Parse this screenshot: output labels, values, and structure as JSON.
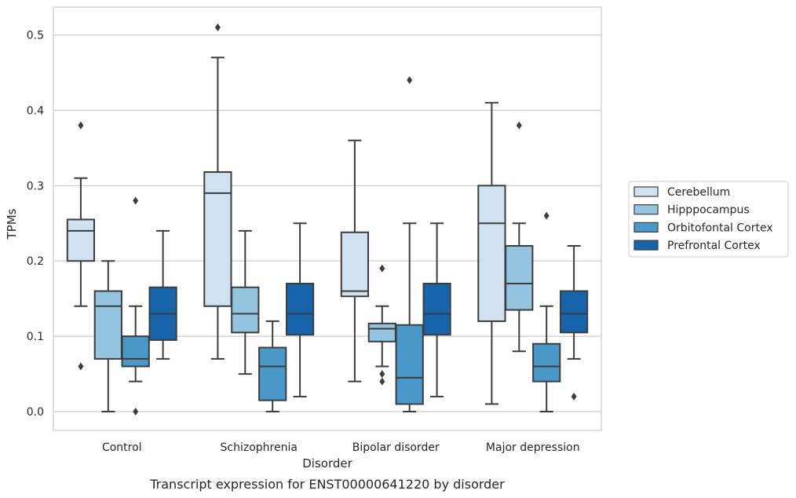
{
  "chart_data": {
    "type": "box",
    "caption": "Transcript expression for ENST00000641220 by disorder",
    "xlabel": "Disorder",
    "ylabel": "TPMs",
    "ylim": [
      -0.025,
      0.537
    ],
    "yticks": [
      "0.0",
      "0.1",
      "0.2",
      "0.3",
      "0.4",
      "0.5"
    ],
    "ytick_values": [
      0.0,
      0.1,
      0.2,
      0.3,
      0.4,
      0.5
    ],
    "grid": true,
    "legend_position": "right",
    "categories": [
      "Control",
      "Schizophrenia",
      "Bipolar disorder",
      "Major depression"
    ],
    "series": [
      {
        "name": "Cerebellum",
        "color": "#d0e1f2",
        "boxes": [
          {
            "whislo": 0.14,
            "q1": 0.2,
            "med": 0.24,
            "q3": 0.255,
            "whishi": 0.31,
            "fliers": [
              0.06,
              0.38
            ]
          },
          {
            "whislo": 0.07,
            "q1": 0.14,
            "med": 0.29,
            "q3": 0.318,
            "whishi": 0.47,
            "fliers": [
              0.51
            ]
          },
          {
            "whislo": 0.04,
            "q1": 0.153,
            "med": 0.16,
            "q3": 0.238,
            "whishi": 0.36,
            "fliers": []
          },
          {
            "whislo": 0.01,
            "q1": 0.12,
            "med": 0.25,
            "q3": 0.3,
            "whishi": 0.41,
            "fliers": []
          }
        ]
      },
      {
        "name": "Hipppocampus",
        "color": "#94c4df",
        "boxes": [
          {
            "whislo": 0.0,
            "q1": 0.07,
            "med": 0.14,
            "q3": 0.16,
            "whishi": 0.2,
            "fliers": []
          },
          {
            "whislo": 0.05,
            "q1": 0.105,
            "med": 0.13,
            "q3": 0.165,
            "whishi": 0.24,
            "fliers": []
          },
          {
            "whislo": 0.06,
            "q1": 0.093,
            "med": 0.11,
            "q3": 0.117,
            "whishi": 0.14,
            "fliers": [
              0.04,
              0.05,
              0.19
            ]
          },
          {
            "whislo": 0.08,
            "q1": 0.135,
            "med": 0.17,
            "q3": 0.22,
            "whishi": 0.25,
            "fliers": [
              0.38
            ]
          }
        ]
      },
      {
        "name": "Orbitofontal Cortex",
        "color": "#4a98c9",
        "boxes": [
          {
            "whislo": 0.04,
            "q1": 0.06,
            "med": 0.07,
            "q3": 0.1,
            "whishi": 0.14,
            "fliers": [
              0.0,
              0.28
            ]
          },
          {
            "whislo": 0.0,
            "q1": 0.015,
            "med": 0.06,
            "q3": 0.085,
            "whishi": 0.12,
            "fliers": []
          },
          {
            "whislo": 0.0,
            "q1": 0.01,
            "med": 0.045,
            "q3": 0.115,
            "whishi": 0.25,
            "fliers": [
              0.44
            ]
          },
          {
            "whislo": 0.0,
            "q1": 0.04,
            "med": 0.06,
            "q3": 0.09,
            "whishi": 0.14,
            "fliers": [
              0.26
            ]
          }
        ]
      },
      {
        "name": "Prefrontal Cortex",
        "color": "#1764ab",
        "boxes": [
          {
            "whislo": 0.07,
            "q1": 0.095,
            "med": 0.13,
            "q3": 0.165,
            "whishi": 0.24,
            "fliers": []
          },
          {
            "whislo": 0.02,
            "q1": 0.102,
            "med": 0.13,
            "q3": 0.17,
            "whishi": 0.25,
            "fliers": []
          },
          {
            "whislo": 0.02,
            "q1": 0.102,
            "med": 0.13,
            "q3": 0.17,
            "whishi": 0.25,
            "fliers": []
          },
          {
            "whislo": 0.07,
            "q1": 0.105,
            "med": 0.13,
            "q3": 0.16,
            "whishi": 0.22,
            "fliers": [
              0.02
            ]
          }
        ]
      }
    ]
  }
}
